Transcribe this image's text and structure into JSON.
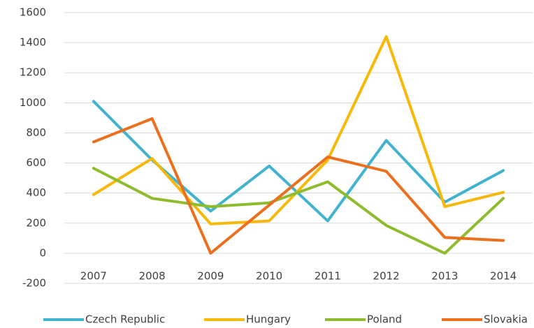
{
  "chart_data": {
    "type": "line",
    "categories": [
      "2007",
      "2008",
      "2009",
      "2010",
      "2011",
      "2012",
      "2013",
      "2014"
    ],
    "series": [
      {
        "name": "Czech Republic",
        "color": "#41b3cf",
        "values": [
          1010,
          620,
          280,
          580,
          215,
          750,
          340,
          550
        ]
      },
      {
        "name": "Hungary",
        "color": "#f6b90a",
        "values": [
          390,
          630,
          195,
          215,
          620,
          1440,
          310,
          405
        ]
      },
      {
        "name": "Poland",
        "color": "#8ebc2e",
        "values": [
          565,
          365,
          310,
          335,
          475,
          185,
          0,
          365
        ]
      },
      {
        "name": "Slovakia",
        "color": "#ec6f1e",
        "values": [
          740,
          895,
          0,
          320,
          640,
          545,
          105,
          85
        ]
      }
    ],
    "ylim": [
      -200,
      1600
    ],
    "yticks": [
      -200,
      0,
      200,
      400,
      600,
      800,
      1000,
      1200,
      1400,
      1600
    ],
    "grid": true,
    "legend": "bottom"
  }
}
